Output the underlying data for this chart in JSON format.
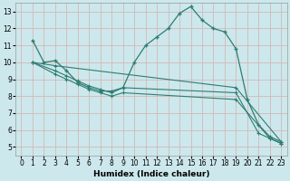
{
  "title": "",
  "xlabel": "Humidex (Indice chaleur)",
  "ylabel": "",
  "bg_color": "#cce8ec",
  "grid_color": "#aaccd0",
  "line_color": "#2e7d72",
  "xlim": [
    -0.5,
    23.5
  ],
  "ylim": [
    4.5,
    13.5
  ],
  "xticks": [
    0,
    1,
    2,
    3,
    4,
    5,
    6,
    7,
    8,
    9,
    10,
    11,
    12,
    13,
    14,
    15,
    16,
    17,
    18,
    19,
    20,
    21,
    22,
    23
  ],
  "yticks": [
    5,
    6,
    7,
    8,
    9,
    10,
    11,
    12,
    13
  ],
  "line1_x": [
    1,
    2,
    3,
    4,
    5,
    6,
    7,
    8,
    9,
    10,
    11,
    12,
    13,
    14,
    15,
    16,
    17,
    18,
    19,
    20,
    21,
    22,
    23
  ],
  "line1_y": [
    11.3,
    10.0,
    10.1,
    9.5,
    8.8,
    8.5,
    8.3,
    8.3,
    8.5,
    10.0,
    11.0,
    11.5,
    12.0,
    12.9,
    13.3,
    12.5,
    12.0,
    11.8,
    10.8,
    7.8,
    6.3,
    5.6,
    5.3
  ],
  "line2_x": [
    1,
    3,
    4,
    5,
    6,
    7,
    8,
    9,
    19,
    21,
    22,
    23
  ],
  "line2_y": [
    10.0,
    9.5,
    9.2,
    8.9,
    8.6,
    8.4,
    8.2,
    8.5,
    8.2,
    5.8,
    5.5,
    5.2
  ],
  "line3_x": [
    1,
    3,
    4,
    5,
    6,
    7,
    8,
    9,
    19,
    22,
    23
  ],
  "line3_y": [
    10.0,
    9.3,
    9.0,
    8.7,
    8.4,
    8.2,
    8.0,
    8.2,
    7.8,
    5.5,
    5.2
  ],
  "line4_x": [
    1,
    3,
    19,
    23
  ],
  "line4_y": [
    10.0,
    9.8,
    8.5,
    5.3
  ]
}
